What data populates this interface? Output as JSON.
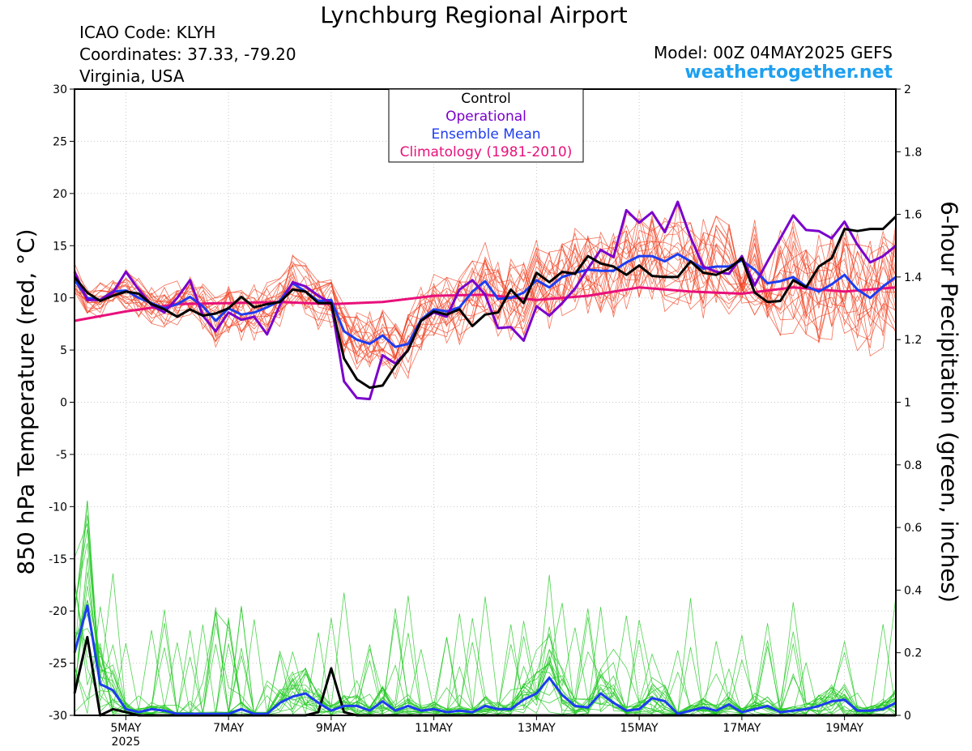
{
  "header": {
    "title": "Lynchburg Regional Airport",
    "icao": "ICAO Code: KLYH",
    "coordinates": "Coordinates: 37.33, -79.20",
    "region": "Virginia, USA",
    "model": "Model: 00Z 04MAY2025 GEFS",
    "site": "weathertogether.net"
  },
  "colors": {
    "control": "#000000",
    "operational": "#7a00cc",
    "ensemble_mean": "#1e3cf0",
    "climatology": "#e8107a",
    "temp_members": "#f04020",
    "precip_members": "#20c820",
    "site": "#1ea0f0"
  },
  "chart_data": {
    "type": "line",
    "x_unit": "days since 00Z 04MAY2025",
    "xlim": [
      0.0,
      16.0
    ],
    "x_ticks": [
      {
        "day": 1,
        "label": "5MAY",
        "sublabel": "2025"
      },
      {
        "day": 3,
        "label": "7MAY"
      },
      {
        "day": 5,
        "label": "9MAY"
      },
      {
        "day": 7,
        "label": "11MAY"
      },
      {
        "day": 9,
        "label": "13MAY"
      },
      {
        "day": 11,
        "label": "15MAY"
      },
      {
        "day": 13,
        "label": "17MAY"
      },
      {
        "day": 15,
        "label": "19MAY"
      }
    ],
    "y_left": {
      "label": "850 hPa Temperature (red, °C)",
      "lim": [
        -30,
        30
      ],
      "ticks": [
        -30,
        -25,
        -20,
        -15,
        -10,
        -5,
        0,
        5,
        10,
        15,
        20,
        25,
        30
      ]
    },
    "y_right": {
      "label": "6-hour Precipitation (green, inches)",
      "lim": [
        0,
        2
      ],
      "ticks": [
        "0",
        "0.2",
        "0.4",
        "0.6",
        "0.8",
        "1",
        "1.2",
        "1.4",
        "1.6",
        "1.8",
        "2"
      ]
    },
    "legend": {
      "placement": "top-center",
      "entries": [
        {
          "name": "Control",
          "color": "#000000"
        },
        {
          "name": "Operational",
          "color": "#7a00cc"
        },
        {
          "name": "Ensemble Mean",
          "color": "#1e3cf0"
        },
        {
          "name": "Climatology (1981-2010)",
          "color": "#e8107a"
        }
      ]
    },
    "temperature_series": [
      {
        "name": "Control",
        "x": [
          0,
          0.25,
          0.5,
          0.75,
          1,
          1.25,
          1.5,
          1.75,
          2,
          2.25,
          2.5,
          2.75,
          3,
          3.25,
          3.5,
          3.75,
          4,
          4.25,
          4.5,
          4.75,
          5,
          5.25,
          5.5,
          5.75,
          6,
          6.25,
          6.5,
          6.75,
          7,
          7.25,
          7.5,
          7.75,
          8,
          8.25,
          8.5,
          8.75,
          9,
          9.25,
          9.5,
          9.75,
          10,
          10.25,
          10.5,
          10.75,
          11,
          11.25,
          11.5,
          11.75,
          12,
          12.25,
          12.5,
          12.75,
          13,
          13.25,
          13.5,
          13.75,
          14,
          14.25,
          14.5,
          14.75,
          15,
          15.25,
          15.5,
          15.75,
          16
        ],
        "y": [
          12.0,
          10.5,
          9.7,
          10.2,
          10.6,
          10.4,
          9.4,
          8.9,
          8.2,
          8.9,
          8.3,
          8.5,
          9.0,
          10.1,
          9.1,
          9.4,
          9.6,
          10.8,
          10.6,
          9.5,
          9.5,
          4.2,
          2.2,
          1.4,
          1.6,
          3.5,
          5.0,
          7.8,
          8.7,
          8.4,
          8.9,
          7.3,
          8.4,
          8.6,
          10.8,
          9.5,
          12.4,
          11.5,
          12.5,
          12.3,
          14.0,
          13.3,
          13.0,
          12.2,
          13.1,
          12.1,
          12.0,
          12.0,
          13.5,
          12.4,
          12.2,
          12.8,
          13.8,
          10.5,
          9.6,
          9.7,
          11.7,
          11.0,
          13.0,
          13.8,
          16.6,
          16.4,
          16.6,
          16.6,
          17.8
        ]
      },
      {
        "name": "Operational",
        "x": [
          0,
          0.25,
          0.5,
          0.75,
          1,
          1.25,
          1.5,
          1.75,
          2,
          2.25,
          2.5,
          2.75,
          3,
          3.25,
          3.5,
          3.75,
          4,
          4.25,
          4.5,
          4.75,
          5,
          5.25,
          5.5,
          5.75,
          6,
          6.25,
          6.5,
          6.75,
          7,
          7.25,
          7.5,
          7.75,
          8,
          8.25,
          8.5,
          8.75,
          9,
          9.25,
          9.5,
          9.75,
          10,
          10.25,
          10.5,
          10.75,
          11,
          11.25,
          11.5,
          11.75,
          12,
          12.25,
          12.5,
          12.75,
          13,
          13.25,
          13.5,
          13.75,
          14,
          14.25,
          14.5,
          14.75,
          15,
          15.25,
          15.5,
          15.75,
          16
        ],
        "y": [
          12.5,
          9.8,
          9.8,
          10.5,
          12.5,
          10.8,
          9.3,
          8.6,
          10.0,
          11.7,
          8.3,
          6.8,
          8.6,
          7.9,
          8.2,
          6.5,
          9.3,
          11.5,
          11.1,
          10.2,
          9.5,
          2.0,
          0.4,
          0.3,
          4.5,
          3.7,
          5.0,
          7.8,
          8.6,
          8.2,
          10.8,
          11.7,
          10.3,
          7.1,
          7.2,
          5.9,
          9.2,
          8.3,
          9.5,
          10.9,
          12.8,
          14.6,
          13.9,
          18.4,
          17.2,
          18.2,
          16.3,
          19.2,
          15.8,
          13.0,
          12.5,
          12.3,
          14.0,
          11.2,
          13.5,
          15.7,
          17.9,
          16.5,
          16.4,
          15.7,
          17.3,
          15.1,
          13.4,
          14.0,
          15.0
        ]
      },
      {
        "name": "Ensemble Mean",
        "x": [
          0,
          0.25,
          0.5,
          0.75,
          1,
          1.25,
          1.5,
          1.75,
          2,
          2.25,
          2.5,
          2.75,
          3,
          3.25,
          3.5,
          3.75,
          4,
          4.25,
          4.5,
          4.75,
          5,
          5.25,
          5.5,
          5.75,
          6,
          6.25,
          6.5,
          6.75,
          7,
          7.25,
          7.5,
          7.75,
          8,
          8.25,
          8.5,
          8.75,
          9,
          9.25,
          9.5,
          9.75,
          10,
          10.25,
          10.5,
          10.75,
          11,
          11.25,
          11.5,
          11.75,
          12,
          12.25,
          12.5,
          12.75,
          13,
          13.25,
          13.5,
          13.75,
          14,
          14.25,
          14.5,
          14.75,
          15,
          15.25,
          15.5,
          15.75,
          16
        ],
        "y": [
          11.7,
          10.0,
          9.8,
          10.6,
          10.7,
          10.0,
          9.5,
          9.0,
          9.4,
          10.1,
          9.2,
          7.8,
          9.0,
          8.4,
          8.6,
          9.1,
          9.7,
          11.4,
          10.6,
          9.7,
          9.8,
          6.8,
          6.0,
          5.6,
          6.4,
          5.3,
          5.6,
          7.9,
          8.9,
          8.7,
          9.1,
          10.6,
          11.6,
          9.9,
          10.0,
          10.5,
          11.7,
          11.0,
          12.0,
          12.4,
          12.7,
          12.6,
          12.6,
          13.4,
          14.0,
          14.0,
          13.5,
          14.2,
          13.5,
          12.8,
          13.0,
          13.0,
          13.6,
          12.7,
          11.4,
          11.6,
          12.0,
          11.1,
          10.6,
          11.3,
          12.2,
          10.8,
          10.0,
          11.1,
          12.0
        ]
      },
      {
        "name": "Climatology (1981-2010)",
        "x": [
          0,
          1,
          2,
          3,
          4,
          5,
          6,
          7,
          8,
          9,
          10,
          11,
          12,
          13,
          14,
          15,
          16
        ],
        "y": [
          7.8,
          8.7,
          9.4,
          9.5,
          9.6,
          9.4,
          9.6,
          10.2,
          10.3,
          9.8,
          10.2,
          11.0,
          10.6,
          10.4,
          11.0,
          10.6,
          11.0
        ]
      }
    ],
    "precipitation_series": [
      {
        "name": "Control",
        "x": [
          0,
          0.25,
          0.5,
          0.75,
          1,
          1.25,
          1.5,
          1.75,
          2,
          2.25,
          2.5,
          2.75,
          3,
          3.25,
          3.5,
          3.75,
          4,
          4.25,
          4.5,
          4.75,
          5,
          5.25,
          5.5,
          5.75,
          6,
          6.25,
          6.5,
          6.75,
          7,
          7.25,
          7.5,
          7.75,
          8,
          8.25,
          8.5,
          8.75,
          9,
          9.25,
          9.5,
          9.75,
          10,
          10.25,
          10.5,
          10.75,
          11,
          11.25,
          11.5,
          11.75,
          12,
          12.25,
          12.5,
          12.75,
          13,
          13.25,
          13.5,
          13.75,
          14,
          14.25,
          14.5,
          14.75,
          15,
          15.25,
          15.5,
          15.75,
          16
        ],
        "y": [
          0.07,
          0.25,
          0,
          0.02,
          0.01,
          0,
          0,
          0,
          0,
          0,
          0,
          0,
          0,
          0,
          0,
          0,
          0,
          0,
          0,
          0.01,
          0.15,
          0.01,
          0,
          0,
          0,
          0,
          0,
          0,
          0,
          0,
          0,
          0,
          0,
          0,
          0,
          0,
          0,
          0,
          0,
          0,
          0,
          0,
          0,
          0,
          0,
          0,
          0,
          0,
          0,
          0,
          0,
          0,
          0,
          0,
          0,
          0,
          0,
          0,
          0,
          0,
          0,
          0,
          0,
          0,
          0
        ]
      },
      {
        "name": "Ensemble Mean",
        "x": [
          0,
          0.25,
          0.5,
          0.75,
          1,
          1.25,
          1.5,
          1.75,
          2,
          2.25,
          2.5,
          2.75,
          3,
          3.25,
          3.5,
          3.75,
          4,
          4.25,
          4.5,
          4.75,
          5,
          5.25,
          5.5,
          5.75,
          6,
          6.25,
          6.5,
          6.75,
          7,
          7.25,
          7.5,
          7.75,
          8,
          8.25,
          8.5,
          8.75,
          9,
          9.25,
          9.5,
          9.75,
          10,
          10.25,
          10.5,
          10.75,
          11,
          11.25,
          11.5,
          11.75,
          12,
          12.25,
          12.5,
          12.75,
          13,
          13.25,
          13.5,
          13.75,
          14,
          14.25,
          14.5,
          14.75,
          15,
          15.25,
          15.5,
          15.75,
          16
        ],
        "y": [
          0.2,
          0.35,
          0.1,
          0.08,
          0.02,
          0.01,
          0.02,
          0.015,
          0.005,
          0.005,
          0.005,
          0.005,
          0.005,
          0.02,
          0.005,
          0.005,
          0.04,
          0.06,
          0.07,
          0.04,
          0.015,
          0.03,
          0.03,
          0.015,
          0.045,
          0.015,
          0.03,
          0.015,
          0.02,
          0.01,
          0.015,
          0.01,
          0.03,
          0.02,
          0.02,
          0.05,
          0.07,
          0.12,
          0.065,
          0.03,
          0.025,
          0.07,
          0.04,
          0.015,
          0.02,
          0.055,
          0.045,
          0.005,
          0.015,
          0.025,
          0.015,
          0.035,
          0.01,
          0.02,
          0.03,
          0.01,
          0.015,
          0.02,
          0.03,
          0.045,
          0.05,
          0.015,
          0.015,
          0.02,
          0.04
        ]
      }
    ]
  }
}
